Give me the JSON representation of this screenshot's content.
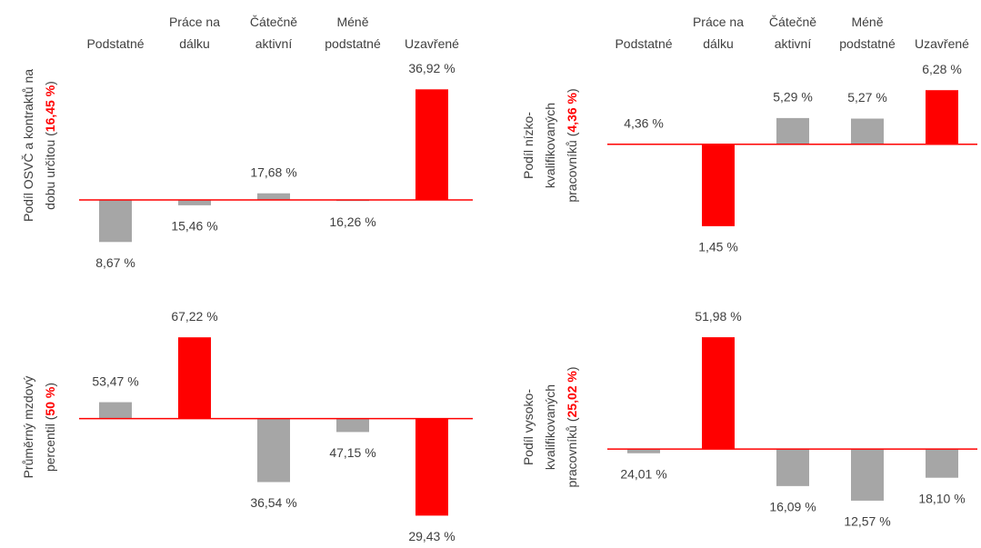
{
  "chart_data": [
    {
      "type": "bar",
      "categories": [
        "Podstatné",
        "Práce na dálku",
        "Čátečně aktivní",
        "Méně podstatné",
        "Uzavřené"
      ],
      "values": [
        8.67,
        15.46,
        17.68,
        16.26,
        36.92
      ],
      "value_labels": [
        "8,67 %",
        "15,46 %",
        "17,68 %",
        "16,26 %",
        "36,92 %"
      ],
      "colors": [
        "#a6a6a6",
        "#a6a6a6",
        "#a6a6a6",
        "#a6a6a6",
        "#ff0000"
      ],
      "baseline": 16.45,
      "baseline_color": "#ff0000",
      "ylabel_lines": [
        "Podíl OSVČ a kontraktů na",
        "dobu určitou ("
      ],
      "ylabel_highlight": "16,45 %",
      "ylabel_end": ")",
      "ylim": [
        3,
        40
      ]
    },
    {
      "type": "bar",
      "categories": [
        "Podstatné",
        "Práce na dálku",
        "Čátečně aktivní",
        "Méně podstatné",
        "Uzavřené"
      ],
      "values": [
        4.36,
        1.45,
        5.29,
        5.27,
        6.28
      ],
      "value_labels": [
        "4,36 %",
        "1,45 %",
        "5,29 %",
        "5,27 %",
        "6,28 %"
      ],
      "colors": [
        "#a6a6a6",
        "#ff0000",
        "#a6a6a6",
        "#a6a6a6",
        "#ff0000"
      ],
      "baseline": 4.36,
      "baseline_color": "#ff0000",
      "ylabel_lines": [
        "Podíl nízko-",
        "kvalifikovaných",
        "pracovníků ("
      ],
      "ylabel_highlight": "4,36 %",
      "ylabel_end": ")",
      "ylim": [
        -0.2,
        6.9
      ]
    },
    {
      "type": "bar",
      "values": [
        53.47,
        67.22,
        36.54,
        47.15,
        29.43
      ],
      "value_labels": [
        "53,47 %",
        "67,22 %",
        "36,54 %",
        "47,15 %",
        "29,43 %"
      ],
      "colors": [
        "#a6a6a6",
        "#ff0000",
        "#a6a6a6",
        "#a6a6a6",
        "#ff0000"
      ],
      "baseline": 50,
      "baseline_color": "#ff0000",
      "ylabel_lines": [
        "Průměrný mzdový",
        "percentil ("
      ],
      "ylabel_highlight": "50 %",
      "ylabel_end": ")",
      "ylim": [
        27,
        71.3
      ]
    },
    {
      "type": "bar",
      "values": [
        24.01,
        51.98,
        16.09,
        12.57,
        18.1
      ],
      "value_labels": [
        "24,01 %",
        "51,98 %",
        "16,09 %",
        "12,57 %",
        "18,10 %"
      ],
      "colors": [
        "#a6a6a6",
        "#ff0000",
        "#a6a6a6",
        "#a6a6a6",
        "#a6a6a6"
      ],
      "baseline": 25.02,
      "baseline_color": "#ff0000",
      "ylabel_lines": [
        "Podíl vysoko-",
        "kvalifikovaných",
        "pracovníků ("
      ],
      "ylabel_highlight": "25,02 %",
      "ylabel_end": ")",
      "ylim": [
        6.2,
        56.6
      ]
    }
  ]
}
